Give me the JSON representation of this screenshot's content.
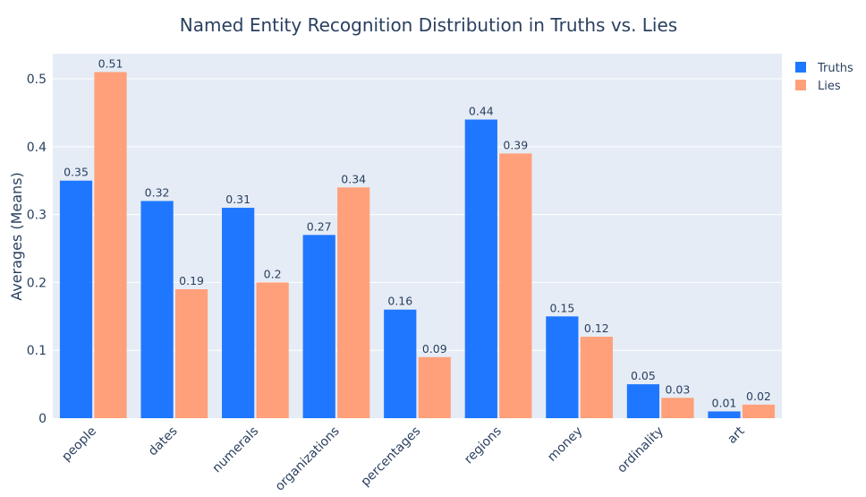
{
  "chart_data": {
    "type": "bar",
    "title": "Named Entity Recognition Distribution in Truths vs. Lies",
    "xlabel": "",
    "ylabel": "Averages (Means)",
    "categories": [
      "people",
      "dates",
      "numerals",
      "organizations",
      "percentages",
      "regions",
      "money",
      "ordinality",
      "art"
    ],
    "series": [
      {
        "name": "Truths",
        "color": "#1f77ff",
        "values": [
          0.35,
          0.32,
          0.31,
          0.27,
          0.16,
          0.44,
          0.15,
          0.05,
          0.01
        ]
      },
      {
        "name": "Lies",
        "color": "#ffa07a",
        "values": [
          0.51,
          0.19,
          0.2,
          0.34,
          0.09,
          0.39,
          0.12,
          0.03,
          0.02
        ]
      }
    ],
    "ylim": [
      0,
      0.537
    ],
    "yticks": [
      "0",
      "0.1",
      "0.2",
      "0.3",
      "0.4",
      "0.5"
    ],
    "grid": true,
    "legend_position": "top-right",
    "plot_background": "#e5ecf6"
  }
}
